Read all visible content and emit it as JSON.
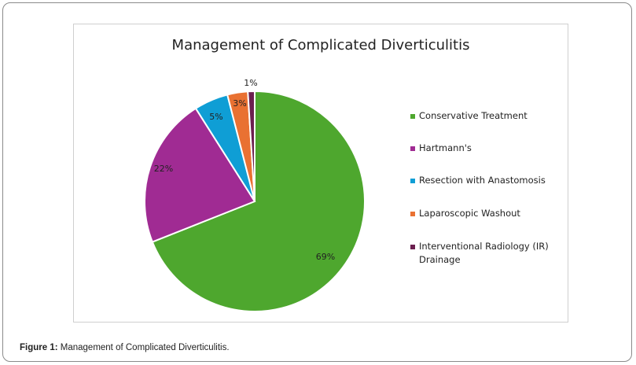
{
  "caption": {
    "label": "Figure 1:",
    "text": " Management of Complicated Diverticulitis."
  },
  "chart_data": {
    "type": "pie",
    "title": "Management of Complicated Diverticulitis",
    "legend_position": "right",
    "slices": [
      {
        "name": "Conservative Treatment",
        "value": 69,
        "label": "69%",
        "color": "#4ea72e"
      },
      {
        "name": "Hartmann's",
        "value": 22,
        "label": "22%",
        "color": "#a02b93"
      },
      {
        "name": "Resection with Anastomosis",
        "value": 5,
        "label": "5%",
        "color": "#0f9ed5"
      },
      {
        "name": "Laparoscopic Washout",
        "value": 3,
        "label": "3%",
        "color": "#e97132"
      },
      {
        "name": "Interventional Radiology (IR) Drainage",
        "value": 1,
        "label": "1%",
        "color": "#6b1f4f"
      }
    ]
  }
}
